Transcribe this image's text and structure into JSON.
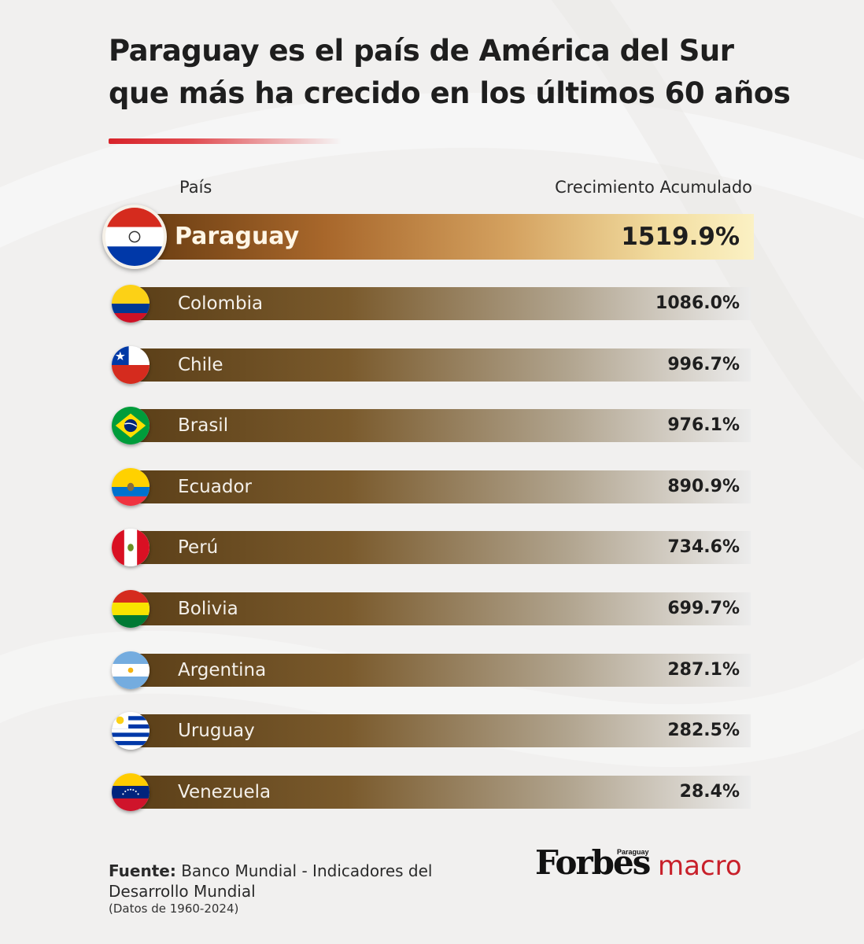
{
  "title_lines": [
    "Paraguay es el país de América del Sur",
    "que más ha crecido en los últimos 60 años"
  ],
  "header": {
    "country": "País",
    "value": "Crecimiento Acumulado"
  },
  "chart_data": {
    "type": "bar",
    "orientation": "horizontal",
    "categories": [
      "Paraguay",
      "Colombia",
      "Chile",
      "Brasil",
      "Ecuador",
      "Perú",
      "Bolivia",
      "Argentina",
      "Uruguay",
      "Venezuela"
    ],
    "values": [
      1519.9,
      1086.0,
      996.7,
      976.1,
      890.9,
      734.6,
      699.7,
      287.1,
      282.5,
      28.4
    ],
    "value_labels": [
      "1519.9%",
      "1086.0%",
      "996.7%",
      "976.1%",
      "890.9%",
      "734.6%",
      "699.7%",
      "287.1%",
      "282.5%",
      "28.4%"
    ],
    "highlight": "Paraguay",
    "flag_icons": [
      "paraguay-flag-icon",
      "colombia-flag-icon",
      "chile-flag-icon",
      "brazil-flag-icon",
      "ecuador-flag-icon",
      "peru-flag-icon",
      "bolivia-flag-icon",
      "argentina-flag-icon",
      "uruguay-flag-icon",
      "venezuela-flag-icon"
    ]
  },
  "footer": {
    "source_label": "Fuente:",
    "source_text": "Banco Mundial - Indicadores del Desarrollo Mundial",
    "note": "(Datos de 1960-2024)"
  },
  "logo": {
    "brand": "Forbes",
    "edition": "Paraguay",
    "section": "macro"
  },
  "colors": {
    "accent_red": "#d8232a",
    "bar_dark": "#5b3f18",
    "highlight_gold": "#d4a15f"
  }
}
